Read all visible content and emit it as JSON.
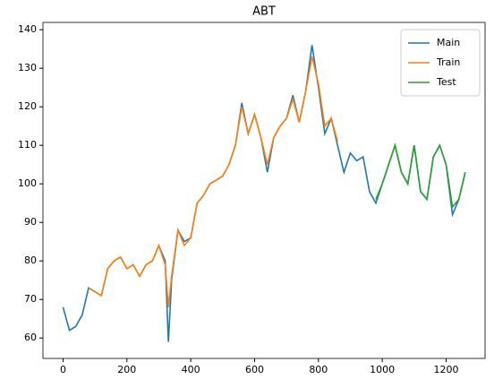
{
  "chart_data": {
    "type": "line",
    "title": "ABT",
    "x": [
      0,
      20,
      40,
      60,
      80,
      100,
      120,
      140,
      160,
      180,
      200,
      220,
      240,
      260,
      280,
      300,
      320,
      330,
      340,
      360,
      380,
      400,
      420,
      440,
      460,
      480,
      500,
      520,
      540,
      560,
      580,
      600,
      620,
      640,
      660,
      680,
      700,
      720,
      740,
      760,
      780,
      800,
      820,
      840,
      860,
      880,
      900,
      920,
      940,
      960,
      980,
      1000,
      1020,
      1040,
      1060,
      1080,
      1100,
      1120,
      1140,
      1160,
      1180,
      1200,
      1220,
      1240,
      1260
    ],
    "series": [
      {
        "name": "Main",
        "color": "#1f77b4",
        "values": [
          68,
          62,
          63,
          66,
          73,
          72,
          71,
          78,
          80,
          81,
          78,
          79,
          76,
          79,
          80,
          84,
          80,
          59,
          75,
          88,
          85,
          86,
          95,
          97,
          100,
          101,
          102,
          105,
          110,
          121,
          113,
          118,
          112,
          103,
          112,
          115,
          117,
          123,
          116,
          124,
          136,
          125,
          113,
          117,
          110,
          103,
          108,
          106,
          107,
          98,
          95,
          100,
          105,
          110,
          103,
          100,
          110,
          98,
          96,
          107,
          110,
          105,
          92,
          96,
          103
        ]
      },
      {
        "name": "Train",
        "color": "#ff7f0e",
        "values": [
          null,
          null,
          null,
          null,
          73,
          72,
          71,
          78,
          80,
          81,
          78,
          79,
          76,
          79,
          80,
          84,
          79,
          68,
          76,
          88,
          84,
          86,
          95,
          97,
          100,
          101,
          102,
          105,
          110,
          120,
          113,
          118,
          112,
          105,
          112,
          115,
          117,
          122,
          116,
          124,
          133,
          126,
          115,
          117,
          111,
          null,
          null,
          null,
          null,
          null,
          null,
          null,
          null,
          null,
          null,
          null,
          null,
          null,
          null,
          null,
          null,
          null,
          null,
          null,
          null
        ]
      },
      {
        "name": "Test",
        "color": "#2ca02c",
        "values": [
          null,
          null,
          null,
          null,
          null,
          null,
          null,
          null,
          null,
          null,
          null,
          null,
          null,
          null,
          null,
          null,
          null,
          null,
          null,
          null,
          null,
          null,
          null,
          null,
          null,
          null,
          null,
          null,
          null,
          null,
          null,
          null,
          null,
          null,
          null,
          null,
          null,
          null,
          null,
          null,
          null,
          null,
          null,
          null,
          null,
          null,
          null,
          null,
          null,
          null,
          96,
          100,
          105,
          110,
          103,
          100,
          110,
          98,
          96,
          107,
          110,
          105,
          94,
          96,
          103
        ]
      }
    ],
    "xlim": [
      -63,
      1322
    ],
    "xticks": [
      0,
      200,
      400,
      600,
      800,
      1000,
      1200
    ],
    "ylim": [
      54.7,
      141.9
    ],
    "yticks": [
      60,
      70,
      80,
      90,
      100,
      110,
      120,
      130,
      140
    ],
    "legend": "upper right"
  }
}
